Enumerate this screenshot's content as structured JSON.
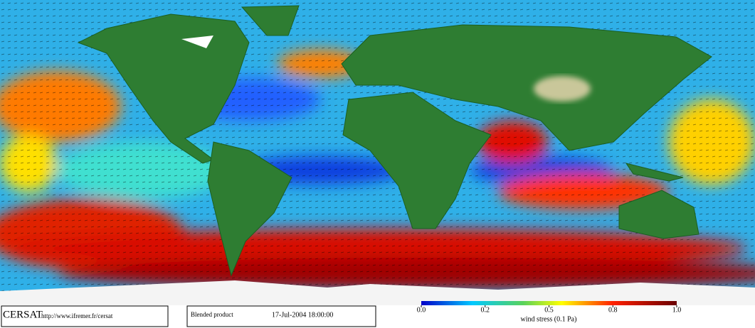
{
  "footer": {
    "logo": "CERSAT",
    "url": "http://www.ifremer.fr/cersat",
    "product": "Blended product",
    "datetime": "17-Jul-2004 18:00:00"
  },
  "colorbar": {
    "title": "wind stress (0.1 Pa)",
    "ticks": [
      {
        "value": 0,
        "label": "0.0"
      },
      0.2,
      0.5,
      0.8,
      {
        "value": 1,
        "label": "1.0"
      }
    ]
  }
}
